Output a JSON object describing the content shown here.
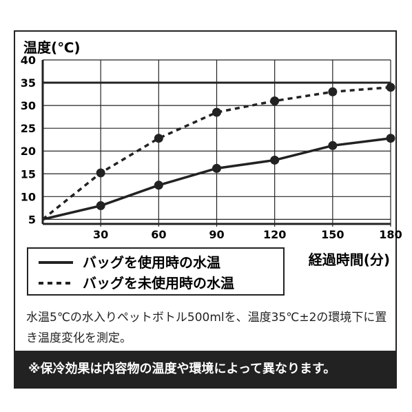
{
  "chart_data": {
    "type": "line",
    "ylabel": "温度(℃)",
    "xlabel": "経過時間(分)",
    "x": [
      0,
      30,
      60,
      90,
      120,
      150,
      180
    ],
    "x_ticks": [
      "30",
      "60",
      "90",
      "120",
      "150",
      "180"
    ],
    "y_ticks": [
      "5",
      "10",
      "15",
      "20",
      "25",
      "30",
      "35",
      "40"
    ],
    "ylim": [
      5,
      40
    ],
    "xlim": [
      0,
      180
    ],
    "reference_line": 35,
    "grid": true,
    "series": [
      {
        "name": "バッグを使用時の水温",
        "style": "solid",
        "values": [
          5,
          8,
          12.5,
          16.2,
          18,
          21.2,
          22.8
        ]
      },
      {
        "name": "バッグを未使用時の水温",
        "style": "dashed",
        "values": [
          5,
          15.2,
          22.8,
          28.5,
          31,
          33,
          34
        ]
      }
    ],
    "legend_position": "bottom-left"
  },
  "note": "水温5℃の水入りペットボトル500mlを、温度35℃±2の環境下に置き温度変化を測定。",
  "banner": "※保冷効果は内容物の温度や環境によって異なります。",
  "colors": {
    "line": "#222222",
    "banner_bg": "#222222"
  }
}
